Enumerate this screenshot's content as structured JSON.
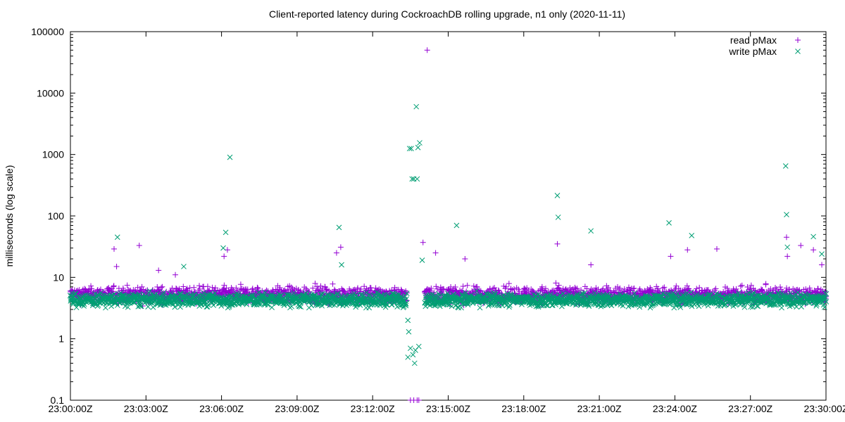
{
  "chart_data": {
    "type": "scatter",
    "title": "Client-reported latency during CockroachDB rolling upgrade, n1 only (2020-11-11)",
    "xlabel": "",
    "ylabel": "milliseconds (log scale)",
    "y_scale": "log",
    "ylim": [
      0.1,
      100000
    ],
    "xlim": [
      "23:00:00Z",
      "23:30:00Z"
    ],
    "y_ticks": [
      "0.1",
      "1",
      "10",
      "100",
      "1000",
      "10000",
      "100000"
    ],
    "x_ticks": [
      "23:00:00Z",
      "23:03:00Z",
      "23:06:00Z",
      "23:09:00Z",
      "23:12:00Z",
      "23:15:00Z",
      "23:18:00Z",
      "23:21:00Z",
      "23:24:00Z",
      "23:27:00Z",
      "23:30:00Z"
    ],
    "grid": false,
    "legend_position": "top-right",
    "series": [
      {
        "name": "read pMax",
        "marker": "plus",
        "color": "#9400d3",
        "points": [
          [
            "23:01:44Z",
            29
          ],
          [
            "23:01:50Z",
            15
          ],
          [
            "23:02:44Z",
            33
          ],
          [
            "23:03:30Z",
            13
          ],
          [
            "23:04:10Z",
            11
          ],
          [
            "23:06:06Z",
            22
          ],
          [
            "23:06:14Z",
            28
          ],
          [
            "23:10:34Z",
            25
          ],
          [
            "23:10:44Z",
            31
          ],
          [
            "23:13:30Z",
            0.1
          ],
          [
            "23:13:38Z",
            0.1
          ],
          [
            "23:13:46Z",
            0.1
          ],
          [
            "23:13:50Z",
            0.1
          ],
          [
            "23:14:00Z",
            37
          ],
          [
            "23:14:10Z",
            50000
          ],
          [
            "23:14:30Z",
            25
          ],
          [
            "23:15:40Z",
            20
          ],
          [
            "23:19:20Z",
            35
          ],
          [
            "23:20:40Z",
            16
          ],
          [
            "23:23:50Z",
            22
          ],
          [
            "23:24:30Z",
            28
          ],
          [
            "23:25:40Z",
            29
          ],
          [
            "23:28:26Z",
            45
          ],
          [
            "23:28:28Z",
            22
          ],
          [
            "23:29:00Z",
            33
          ],
          [
            "23:29:30Z",
            28
          ],
          [
            "23:29:50Z",
            16
          ]
        ]
      },
      {
        "name": "write pMax",
        "marker": "cross",
        "color": "#009e73",
        "points": [
          [
            "23:01:52Z",
            45
          ],
          [
            "23:04:30Z",
            15
          ],
          [
            "23:06:04Z",
            30
          ],
          [
            "23:06:10Z",
            54
          ],
          [
            "23:06:20Z",
            900
          ],
          [
            "23:10:40Z",
            65
          ],
          [
            "23:10:46Z",
            16
          ],
          [
            "23:13:24Z",
            2
          ],
          [
            "23:13:24Z",
            0.5
          ],
          [
            "23:13:26Z",
            1.3
          ],
          [
            "23:13:28Z",
            1250
          ],
          [
            "23:13:30Z",
            0.7
          ],
          [
            "23:13:32Z",
            1250
          ],
          [
            "23:13:34Z",
            400
          ],
          [
            "23:13:36Z",
            0.55
          ],
          [
            "23:13:38Z",
            400
          ],
          [
            "23:13:40Z",
            0.4
          ],
          [
            "23:13:42Z",
            0.65
          ],
          [
            "23:13:44Z",
            6000
          ],
          [
            "23:13:46Z",
            400
          ],
          [
            "23:13:48Z",
            1300
          ],
          [
            "23:13:50Z",
            0.75
          ],
          [
            "23:13:52Z",
            1550
          ],
          [
            "23:13:58Z",
            19
          ],
          [
            "23:15:20Z",
            70
          ],
          [
            "23:19:20Z",
            215
          ],
          [
            "23:19:22Z",
            95
          ],
          [
            "23:20:40Z",
            57
          ],
          [
            "23:23:46Z",
            77
          ],
          [
            "23:24:40Z",
            48
          ],
          [
            "23:28:24Z",
            650
          ],
          [
            "23:28:26Z",
            105
          ],
          [
            "23:28:28Z",
            31
          ],
          [
            "23:29:30Z",
            46
          ],
          [
            "23:29:50Z",
            24
          ]
        ]
      }
    ]
  }
}
